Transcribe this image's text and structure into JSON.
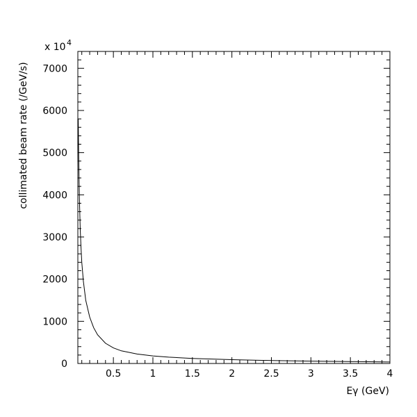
{
  "chart_data": {
    "type": "line",
    "title": "",
    "xlabel": "Eγ (GeV)",
    "ylabel": "collimated beam rate (/GeV/s)",
    "y_multiplier": {
      "base": "x 10",
      "exponent": "4"
    },
    "xlim": [
      0.05,
      4.0
    ],
    "ylim": [
      0,
      7400
    ],
    "x_ticks": [
      {
        "value": 0.5,
        "label": "0.5"
      },
      {
        "value": 1.0,
        "label": "1"
      },
      {
        "value": 1.5,
        "label": "1.5"
      },
      {
        "value": 2.0,
        "label": "2"
      },
      {
        "value": 2.5,
        "label": "2.5"
      },
      {
        "value": 3.0,
        "label": "3"
      },
      {
        "value": 3.5,
        "label": "3.5"
      },
      {
        "value": 4.0,
        "label": "4"
      }
    ],
    "y_ticks": [
      {
        "value": 0,
        "label": "0"
      },
      {
        "value": 1000,
        "label": "1000"
      },
      {
        "value": 2000,
        "label": "2000"
      },
      {
        "value": 3000,
        "label": "3000"
      },
      {
        "value": 4000,
        "label": "4000"
      },
      {
        "value": 5000,
        "label": "5000"
      },
      {
        "value": 6000,
        "label": "6000"
      },
      {
        "value": 7000,
        "label": "7000"
      }
    ],
    "grid": false,
    "series": [
      {
        "x": [
          0.055,
          0.06,
          0.065,
          0.07,
          0.08,
          0.09,
          0.1,
          0.12,
          0.15,
          0.2,
          0.25,
          0.3,
          0.4,
          0.5,
          0.6,
          0.8,
          1.0,
          1.2,
          1.5,
          2.0,
          2.5,
          3.0,
          3.5,
          4.0
        ],
        "y": [
          5800,
          5000,
          4400,
          3900,
          3200,
          2750,
          2400,
          1950,
          1500,
          1100,
          850,
          680,
          480,
          370,
          300,
          225,
          180,
          150,
          120,
          90,
          70,
          55,
          45,
          35
        ]
      }
    ]
  }
}
